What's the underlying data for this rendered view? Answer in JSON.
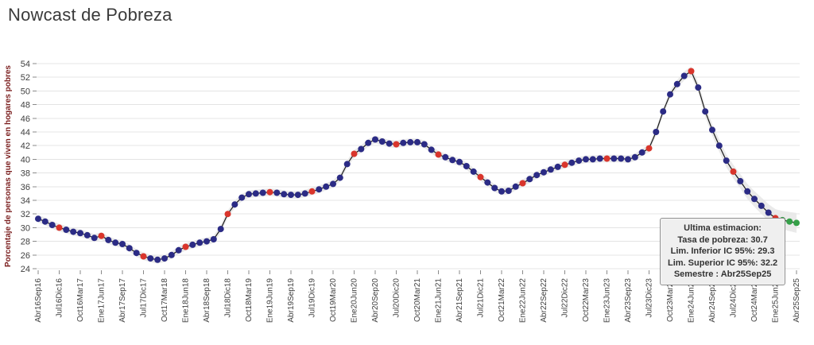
{
  "page": {
    "title": "Nowcast de Pobreza"
  },
  "tooltip": {
    "lines": [
      "Ultima estimacion:",
      "Tasa de pobreza:  30.7",
      "Lim. Inferior IC 95%:  29.3",
      "Lim. Superior IC 95%:  32.2",
      "Semestre : Abr25Sep25"
    ],
    "tasa_de_pobreza": 30.7,
    "lim_inferior_ic95": 29.3,
    "lim_superior_ic95": 32.2,
    "semestre": "Abr25Sep25"
  },
  "chart_data": {
    "type": "line",
    "title": "Nowcast de Pobreza",
    "ylabel": "Porcentaje de personas que viven en hogares pobres",
    "xlabel": "",
    "ylim": [
      23,
      55
    ],
    "yticks": [
      24,
      26,
      28,
      30,
      32,
      34,
      36,
      38,
      40,
      42,
      44,
      46,
      48,
      50,
      52,
      54
    ],
    "grid": "horizontal",
    "legend_position": "none",
    "x_labels": [
      "Abr16Sep16",
      "Jul16Dic16",
      "Oct16Mar17",
      "Ene17Jun17",
      "Abr17Sep17",
      "Jul17Dic17",
      "Oct17Mar18",
      "Ene18Jun18",
      "Abr18Sep18",
      "Jul18Dic18",
      "Oct18Mar19",
      "Ene19Jun19",
      "Abr19Sep19",
      "Jul19Dic19",
      "Oct19Mar20",
      "Ene20Jun20",
      "Abr20Sep20",
      "Jul20Dic20",
      "Oct20Mar21",
      "Ene21Jun21",
      "Abr21Sep21",
      "Jul21Dic21",
      "Oct21Mar22",
      "Ene22Jun22",
      "Abr22Sep22",
      "Jul22Dic22",
      "Oct22Mar23",
      "Ene23Jun23",
      "Abr23Sep23",
      "Jul23Dic23",
      "Oct23Mar24",
      "Ene24Jun24",
      "Abr24Sep24",
      "Jul24Dic24",
      "Oct24Mar25",
      "Ene25Jun25",
      "Abr25Sep25"
    ],
    "points_per_label": 3,
    "values": [
      31.3,
      30.9,
      30.4,
      30.0,
      29.7,
      29.4,
      29.2,
      28.9,
      28.5,
      28.8,
      28.2,
      27.8,
      27.6,
      27.0,
      26.3,
      25.8,
      25.5,
      25.3,
      25.5,
      26.0,
      26.7,
      27.2,
      27.5,
      27.8,
      28.0,
      28.3,
      29.8,
      32.0,
      33.4,
      34.4,
      34.9,
      35.0,
      35.1,
      35.2,
      35.1,
      34.9,
      34.8,
      34.8,
      35.0,
      35.3,
      35.6,
      36.0,
      36.4,
      37.3,
      39.3,
      40.8,
      41.5,
      42.4,
      42.9,
      42.6,
      42.3,
      42.2,
      42.4,
      42.5,
      42.5,
      42.2,
      41.4,
      40.7,
      40.3,
      39.9,
      39.6,
      39.0,
      38.2,
      37.4,
      36.6,
      35.8,
      35.3,
      35.4,
      36.0,
      36.5,
      37.1,
      37.7,
      38.1,
      38.5,
      38.9,
      39.2,
      39.5,
      39.8,
      40.0,
      40.0,
      40.1,
      40.1,
      40.1,
      40.1,
      40.0,
      40.3,
      41.0,
      41.6,
      44.0,
      47.0,
      49.5,
      51.0,
      52.2,
      52.9,
      50.5,
      47.0,
      44.3,
      42.0,
      39.8,
      38.2,
      36.8,
      35.3,
      34.2,
      33.2,
      32.2,
      31.4,
      31.1,
      30.9,
      30.7
    ],
    "red_points": [
      3,
      9,
      15,
      21,
      27,
      33,
      39,
      45,
      51,
      57,
      63,
      69,
      75,
      81,
      87,
      93,
      99,
      105
    ],
    "green_points": [
      106,
      107,
      108
    ],
    "colors": {
      "nowcast_navy": "#2b2b85",
      "official_red": "#d9352c",
      "latest_green": "#35a048",
      "line": "#1a1a1a",
      "band": "#e8e8e8",
      "grid": "#e4e4e4",
      "axis_text": "#3f3f3f",
      "ylabel_color": "#7b1f1f",
      "tick": "#8a8a8a"
    }
  }
}
